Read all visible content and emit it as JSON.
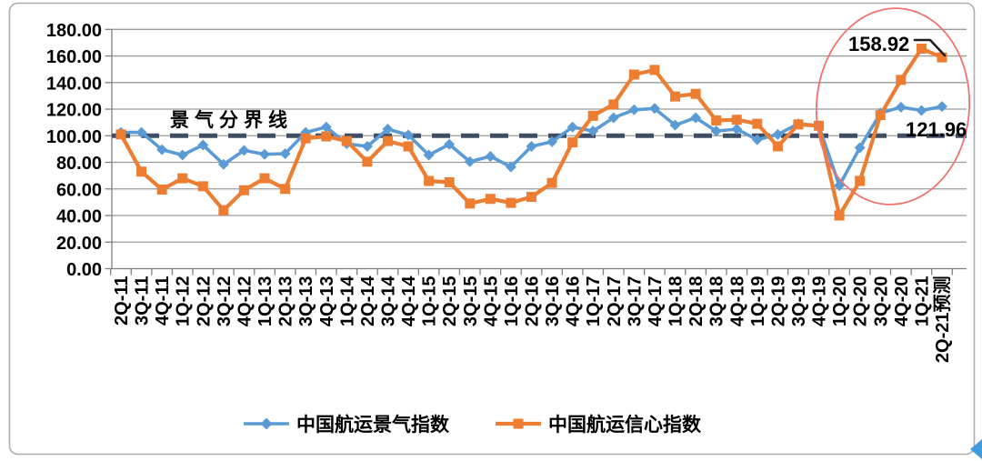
{
  "page": {
    "background": "#ffffff",
    "card_border_color": "#adadad"
  },
  "chart_data": {
    "type": "line",
    "title": "",
    "xlabel": "",
    "ylabel": "",
    "ylim": [
      0,
      180
    ],
    "ytick_step": 20,
    "ytick_labels": [
      "0.00",
      "20.00",
      "40.00",
      "60.00",
      "80.00",
      "100.00",
      "120.00",
      "140.00",
      "160.00",
      "180.00"
    ],
    "grid": true,
    "gridline_color": "#9a9a9a",
    "axis_color": "#7f7f7f",
    "legend_position": "bottom",
    "categories": [
      "2Q-11",
      "3Q-11",
      "4Q-11",
      "1Q-12",
      "2Q-12",
      "3Q-12",
      "4Q-12",
      "1Q-13",
      "2Q-13",
      "3Q-13",
      "4Q-13",
      "1Q-14",
      "2Q-14",
      "3Q-14",
      "4Q-14",
      "1Q-15",
      "2Q-15",
      "3Q-15",
      "4Q-15",
      "1Q-16",
      "2Q-16",
      "3Q-16",
      "4Q-16",
      "1Q-17",
      "2Q-17",
      "3Q-17",
      "4Q-17",
      "1Q-18",
      "2Q-18",
      "3Q-18",
      "4Q-18",
      "1Q-19",
      "2Q-19",
      "3Q-19",
      "4Q-19",
      "1Q-20",
      "2Q-20",
      "3Q-20",
      "4Q-20",
      "1Q-21",
      "2Q-21预测"
    ],
    "series": [
      {
        "key": "prosperity-index",
        "name": "中国航运景气指数",
        "color": "#5B9BD5",
        "marker": "diamond",
        "values": [
          102.5,
          102.5,
          89.5,
          85.5,
          93,
          78.5,
          89,
          86,
          86.5,
          102.5,
          106.5,
          94,
          92,
          105,
          100.5,
          85.5,
          93.5,
          80.5,
          84.5,
          76.5,
          92,
          95.5,
          106.5,
          103.5,
          113.5,
          119.5,
          120.5,
          108,
          113.5,
          103.5,
          105,
          97,
          101,
          109,
          107.5,
          62.5,
          91,
          117,
          121.5,
          119,
          121.96
        ]
      },
      {
        "key": "confidence-index",
        "name": "中国航运信心指数",
        "color": "#ED7D31",
        "marker": "square",
        "values": [
          101,
          73,
          59.5,
          68,
          62,
          44,
          59,
          68,
          60,
          98,
          99.5,
          96,
          80.5,
          96,
          92,
          66,
          65,
          49,
          52.5,
          49.5,
          54,
          64.5,
          95,
          115,
          123.5,
          146,
          149.5,
          129.5,
          131.5,
          111.5,
          112,
          109,
          92,
          108.5,
          107.5,
          40,
          66,
          115.5,
          142,
          165.5,
          158.92
        ]
      }
    ],
    "reference_line": {
      "value": 100,
      "label": "景气分界线",
      "color": "#3f4d63"
    },
    "annotations": [
      {
        "text": "158.92",
        "color": "#ED7D31",
        "series": "中国航运信心指数",
        "category": "2Q-21预测"
      },
      {
        "text": "121.96",
        "color": "#2E75B6",
        "series": "中国航运景气指数",
        "category": "2Q-21预测"
      }
    ],
    "highlight": {
      "shape": "ellipse",
      "color": "#f0716d"
    }
  },
  "misc": {
    "corner_marker_color": "#3f9be0"
  }
}
